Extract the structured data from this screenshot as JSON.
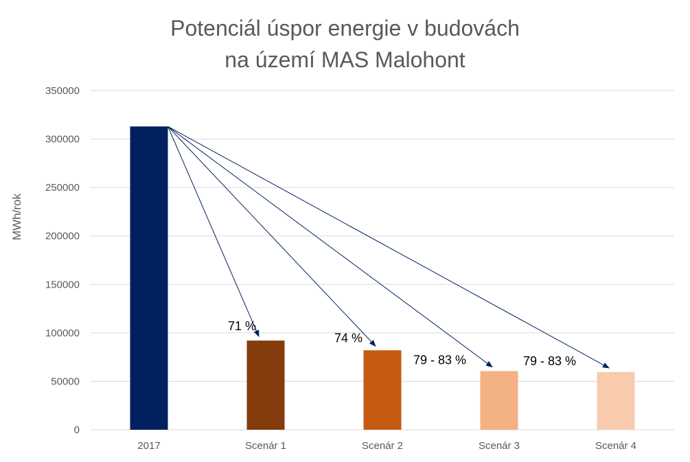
{
  "chart_data": {
    "type": "bar",
    "title_lines": [
      "Potenciál úspor energie v budovách",
      "na území MAS Malohont"
    ],
    "xlabel": "",
    "ylabel": "MWh/rok",
    "ylim": [
      0,
      350000
    ],
    "yticks": [
      "0",
      "50000",
      "100000",
      "150000",
      "200000",
      "250000",
      "300000",
      "350000"
    ],
    "ytick_values": [
      0,
      50000,
      100000,
      150000,
      200000,
      250000,
      300000,
      350000
    ],
    "grid": true,
    "legend": "none",
    "categories": [
      "2017",
      "Scenár 1",
      "Scenár 2",
      "Scenár 3",
      "Scenár 4"
    ],
    "values": [
      313000,
      92000,
      82000,
      60500,
      59500
    ],
    "colors": [
      "#002060",
      "#843C0C",
      "#C55A11",
      "#F4B183",
      "#F8CBAD"
    ],
    "annotations": [
      {
        "target": "Scenár 1",
        "text": "71 %"
      },
      {
        "target": "Scenár 2",
        "text": "74 %"
      },
      {
        "target": "Scenár 3",
        "text": "79 - 83 %"
      },
      {
        "target": "Scenár 4",
        "text": "79 - 83 %"
      }
    ],
    "arrow_color": "#002060"
  }
}
